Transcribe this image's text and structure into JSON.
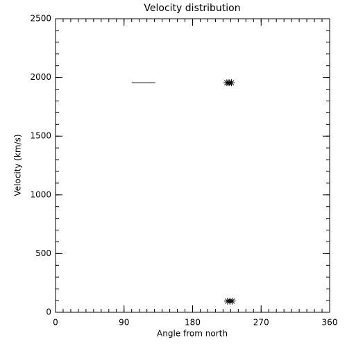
{
  "chart_data": {
    "type": "scatter",
    "title": "Velocity distribution",
    "x_label": "Angle from north",
    "y_label": "Velocity (km/s)",
    "xlim": [
      0,
      360
    ],
    "xticks": [
      0,
      90,
      180,
      270,
      360
    ],
    "xminor": 10,
    "ylim": [
      0,
      2500
    ],
    "yticks": [
      0,
      500,
      1000,
      1500,
      2000,
      2500
    ],
    "yminor": 100,
    "grid": false,
    "color": "#000000",
    "series": [
      {
        "style": "line",
        "x": [
          100,
          131
        ],
        "values": [
          1955,
          1955
        ]
      },
      {
        "style": "asterisk",
        "x": [
          225,
          228,
          231,
          226,
          229,
          232
        ],
        "values": [
          1955,
          1955,
          1955,
          95,
          95,
          95
        ]
      }
    ]
  }
}
